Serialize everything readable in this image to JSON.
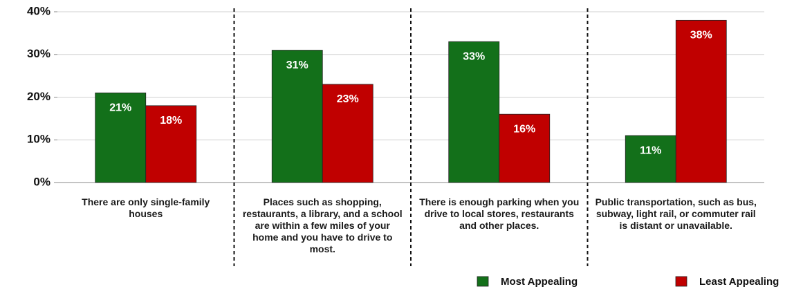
{
  "chart_data": {
    "type": "bar",
    "categories": [
      "There are only single-family houses",
      "Places such as shopping, restaurants, a library, and  a school are within a few miles of your home and you have to drive to most.",
      "There is enough parking when you drive to local stores, restaurants and other places.",
      "Public transportation, such as bus, subway, light rail, or commuter rail is distant or unavailable."
    ],
    "series": [
      {
        "name": "Most Appealing",
        "color": "#13701a",
        "values": [
          21,
          31,
          33,
          11
        ],
        "value_labels": [
          "21%",
          "31%",
          "33%",
          "11%"
        ]
      },
      {
        "name": "Least Appealing",
        "color": "#c00000",
        "values": [
          18,
          23,
          16,
          38
        ],
        "value_labels": [
          "18%",
          "23%",
          "16%",
          "38%"
        ]
      }
    ],
    "ylim": [
      0,
      40
    ],
    "yticks": [
      {
        "value": 0,
        "label": "0%"
      },
      {
        "value": 10,
        "label": "10%"
      },
      {
        "value": 20,
        "label": "20%"
      },
      {
        "value": 30,
        "label": "30%"
      },
      {
        "value": 40,
        "label": "40%"
      }
    ],
    "legend": "bottom-right"
  }
}
